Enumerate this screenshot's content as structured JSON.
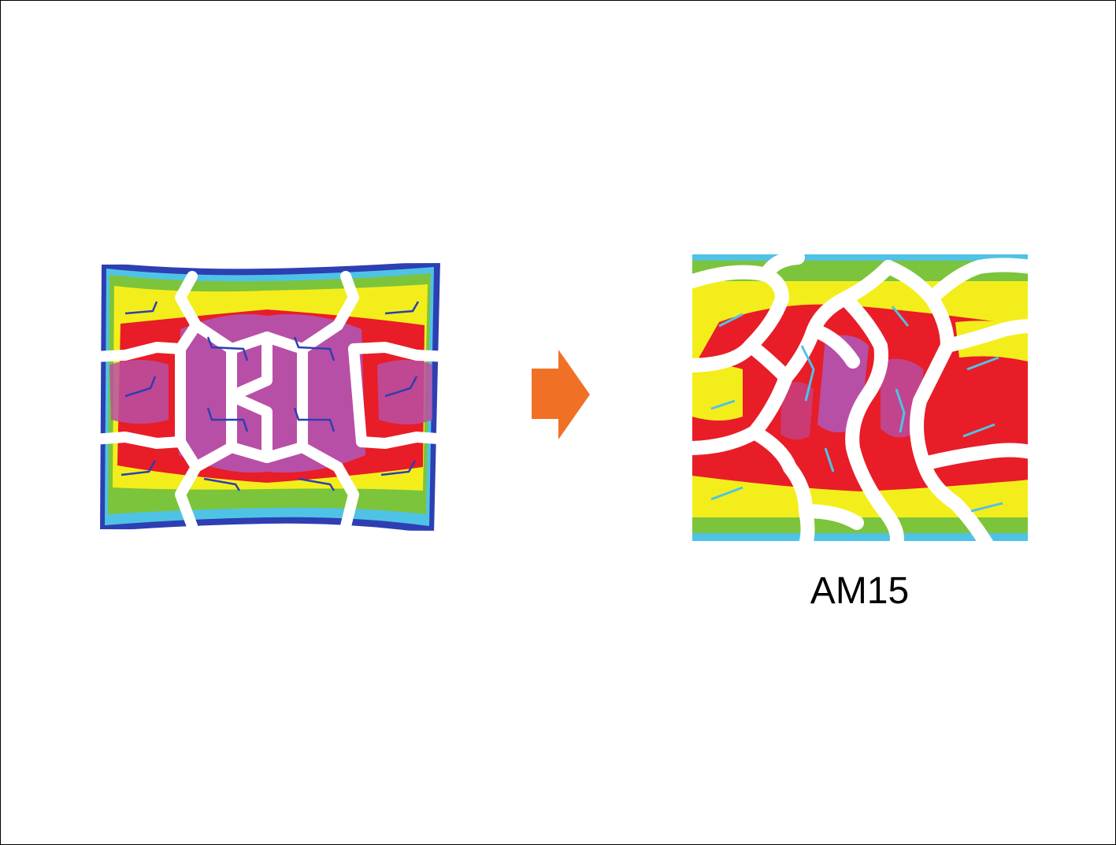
{
  "figure": {
    "caption": "AM15"
  },
  "colors": {
    "background": "#ffffff",
    "border": "#000000",
    "arrow": "#f07125",
    "contact_scale": [
      "#2d3fb2",
      "#4fc3e6",
      "#7cc43c",
      "#f3ee1b",
      "#e81d27",
      "#b84fa6"
    ]
  },
  "icons": {
    "transition": "arrow-right-icon"
  }
}
